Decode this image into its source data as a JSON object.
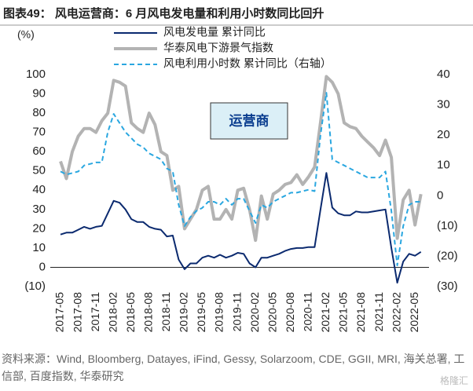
{
  "chart_data": {
    "type": "line",
    "title": "图表49： 风电运营商：6 月风电发电量和利用小时数同比回升",
    "y_axis_label": "(%)",
    "annotation": "运营商",
    "source": "资料来源：Wind, Bloomberg, Datayes, iFind, Gessy, Solarzoom, CDE, GGII, MRI, 海关总署, 工信部, 百度指数, 华泰研究",
    "watermark": "格隆汇",
    "categories": [
      "2017-05",
      null,
      null,
      "2017-08",
      null,
      null,
      "2017-11",
      null,
      null,
      "2018-02",
      null,
      null,
      "2018-05",
      null,
      null,
      "2018-08",
      null,
      null,
      "2018-11",
      null,
      null,
      "2019-02",
      null,
      null,
      "2019-05",
      null,
      null,
      "2019-08",
      null,
      null,
      "2019-11",
      null,
      null,
      "2020-02",
      null,
      null,
      "2020-05",
      null,
      null,
      "2020-08",
      null,
      null,
      "2020-11",
      null,
      null,
      "2021-02",
      null,
      null,
      "2021-05",
      null,
      null,
      "2021-08",
      null,
      null,
      "2021-11",
      null,
      null,
      "2022-02",
      null,
      null,
      "2022-05",
      null
    ],
    "ylim": [
      -10,
      100
    ],
    "yticks": [
      {
        "value": -10,
        "label": "(10)"
      },
      0,
      10,
      20,
      30,
      40,
      50,
      60,
      70,
      80,
      90,
      100
    ],
    "y2lim": [
      -30,
      40
    ],
    "y2ticks": [
      {
        "value": -30,
        "label": "(30)"
      },
      {
        "value": -20,
        "label": "(20)"
      },
      {
        "value": -10,
        "label": "(10)"
      },
      0,
      10,
      20,
      30,
      40
    ],
    "series": [
      {
        "name": "风电发电量 累计同比",
        "color": "#0b2a6f",
        "values": [
          17,
          18,
          18,
          19.5,
          21,
          20,
          21,
          21.5,
          28,
          34.5,
          33.5,
          30,
          25,
          23.5,
          23.5,
          21,
          20,
          19.5,
          16,
          16.5,
          4,
          -1,
          2,
          2,
          5,
          6,
          5,
          6.5,
          5,
          6,
          7.5,
          7,
          2,
          0,
          5,
          5,
          6,
          7,
          8.5,
          9.5,
          10,
          10,
          10.5,
          10.5,
          30,
          49,
          31,
          28,
          27,
          27,
          29,
          28.5,
          28.5,
          29,
          29.5,
          30,
          10,
          -8,
          3,
          7,
          6,
          8
        ]
      },
      {
        "name": "华泰风电下游景气指数",
        "color": "#b3b3b3",
        "values": [
          55,
          46,
          60,
          68,
          72,
          72,
          70,
          76,
          80,
          97,
          96,
          94,
          75,
          72,
          70,
          80,
          74,
          60,
          58,
          40,
          42,
          20,
          25,
          30,
          40,
          42,
          25,
          25,
          30,
          25,
          40,
          41,
          30,
          14,
          37,
          25,
          38,
          40,
          43,
          44,
          48,
          43,
          47,
          52,
          75,
          99,
          96,
          90,
          75,
          73,
          72,
          68,
          65,
          62,
          58,
          66,
          57,
          15,
          35,
          40,
          22,
          38
        ]
      },
      {
        "name": "风电利用小时数 累计同比（右轴）",
        "color": "#2aa7e0",
        "axis": "y2",
        "dashed": true,
        "values": [
          8,
          7,
          7.5,
          8,
          10,
          10.5,
          11,
          11,
          21,
          27,
          24,
          21,
          19,
          17,
          16,
          14,
          13,
          12,
          9,
          8,
          -3,
          -10,
          -7,
          -5,
          -4,
          -2,
          -2,
          -3,
          -1,
          -3,
          -1,
          -1,
          -5,
          -9,
          -3,
          -4,
          -2,
          -1,
          0,
          1,
          1,
          1.5,
          2,
          1.5,
          20,
          34,
          12,
          11,
          10,
          9,
          8,
          7,
          6,
          6,
          6,
          8,
          -5,
          -23,
          -10,
          -3,
          -2,
          -2
        ]
      }
    ]
  }
}
